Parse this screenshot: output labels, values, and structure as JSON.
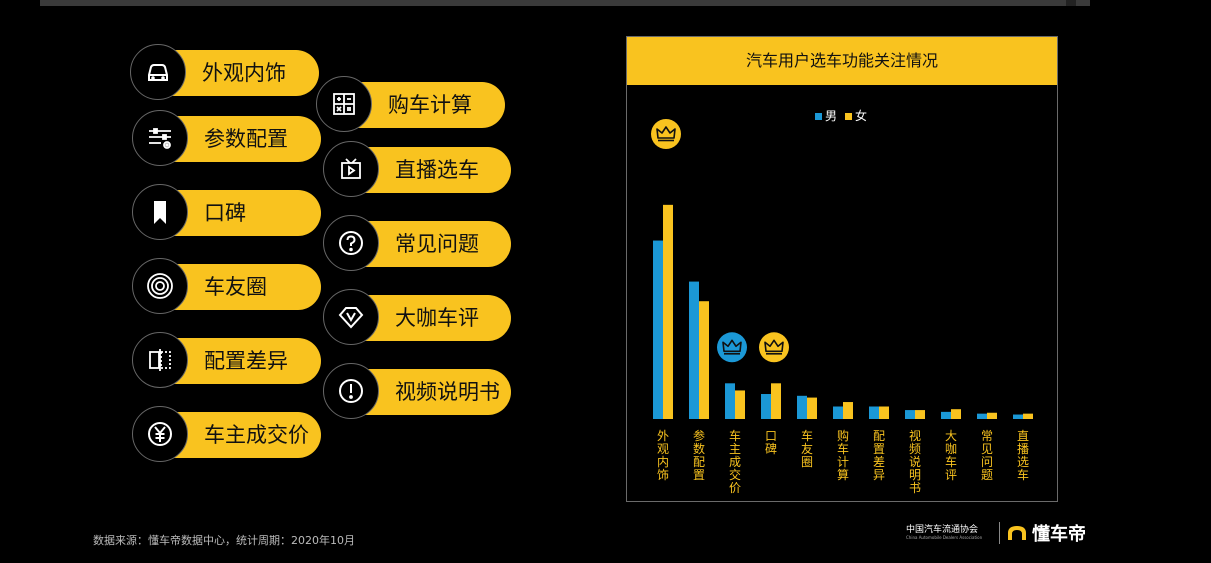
{
  "functions": [
    {
      "label": "外观内饰",
      "icon": "car-front-icon"
    },
    {
      "label": "购车计算",
      "icon": "calculator-icon"
    },
    {
      "label": "参数配置",
      "icon": "settings-sliders-icon"
    },
    {
      "label": "直播选车",
      "icon": "tv-play-icon"
    },
    {
      "label": "口碑",
      "icon": "bookmark-icon"
    },
    {
      "label": "常见问题",
      "icon": "question-icon"
    },
    {
      "label": "车友圈",
      "icon": "concentric-circle-icon"
    },
    {
      "label": "大咖车评",
      "icon": "v-badge-icon"
    },
    {
      "label": "配置差异",
      "icon": "compare-panels-icon"
    },
    {
      "label": "视频说明书",
      "icon": "exclamation-icon"
    },
    {
      "label": "车主成交价",
      "icon": "yuan-icon"
    }
  ],
  "footer": {
    "source": "数据来源：懂车帝数据中心，统计周期：2020年10月",
    "assoc_cn": "中国汽车流通协会",
    "assoc_en": "China Automobile Dealers Association",
    "brand": "懂车帝"
  },
  "colors": {
    "male": "#1b98d6",
    "female": "#f9c31f",
    "accent": "#f9c31f"
  },
  "chart_data": {
    "type": "bar",
    "title": "汽车用户选车功能关注情况",
    "categories": [
      "外观内饰",
      "参数配置",
      "车主成交价",
      "口碑",
      "车友圈",
      "购车计算",
      "配置差异",
      "视频说明书",
      "大咖车评",
      "常见问题",
      "直播选车"
    ],
    "series": [
      {
        "name": "男",
        "values": [
          100,
          77,
          20,
          14,
          13,
          7,
          7,
          5,
          4,
          3,
          2.5
        ]
      },
      {
        "name": "女",
        "values": [
          120,
          66,
          16,
          20,
          12,
          9.5,
          7,
          5,
          5.5,
          3.5,
          3
        ]
      }
    ],
    "ylim": [
      0,
      130
    ],
    "legend": "top-center",
    "crowns": [
      {
        "category": "外观内饰",
        "series": "女"
      },
      {
        "category": "车主成交价",
        "series": "男"
      },
      {
        "category": "口碑",
        "series": "女"
      }
    ]
  }
}
